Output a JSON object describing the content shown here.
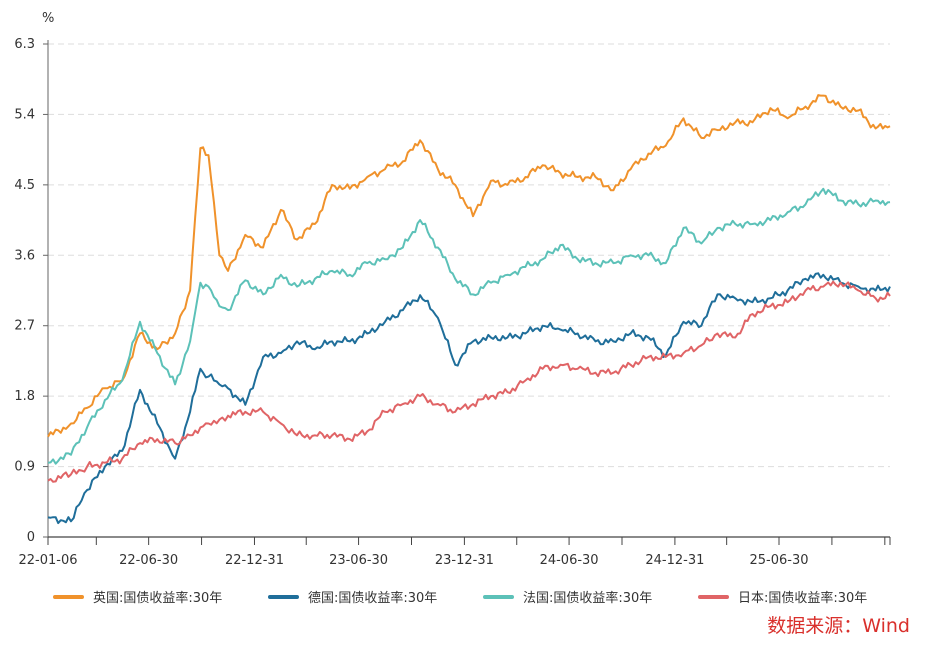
{
  "chart_data": {
    "type": "line",
    "ylabel": "%",
    "ylim": [
      0,
      6.3
    ],
    "yticks": [
      "0",
      "0.9",
      "1.8",
      "2.7",
      "3.6",
      "4.5",
      "5.4",
      "6.3"
    ],
    "xlim": [
      "2022-01-06",
      "2026-01-09"
    ],
    "xticks": [
      {
        "label": "22-01-06",
        "date": "2022-01-06"
      },
      {
        "label": "22-06-30",
        "date": "2022-06-30"
      },
      {
        "label": "22-12-31",
        "date": "2022-12-31"
      },
      {
        "label": "23-06-30",
        "date": "2023-06-30"
      },
      {
        "label": "23-12-31",
        "date": "2023-12-31"
      },
      {
        "label": "24-06-30",
        "date": "2024-06-30"
      },
      {
        "label": "24-12-31",
        "date": "2024-12-31"
      },
      {
        "label": "25-06-30",
        "date": "2025-06-30"
      }
    ],
    "grid": "horizontal dashed",
    "legend": "bottom",
    "x": [
      "2022-01-06",
      "2022-02-15",
      "2022-03-15",
      "2022-04-15",
      "2022-05-15",
      "2022-06-15",
      "2022-07-15",
      "2022-08-15",
      "2022-09-10",
      "2022-09-28",
      "2022-10-12",
      "2022-10-31",
      "2022-11-15",
      "2022-12-15",
      "2023-01-15",
      "2023-02-15",
      "2023-03-15",
      "2023-04-15",
      "2023-05-15",
      "2023-06-15",
      "2023-07-15",
      "2023-08-15",
      "2023-09-15",
      "2023-10-15",
      "2023-11-15",
      "2023-12-15",
      "2024-01-15",
      "2024-02-15",
      "2024-03-15",
      "2024-04-15",
      "2024-05-15",
      "2024-06-15",
      "2024-07-15",
      "2024-08-15",
      "2024-09-15",
      "2024-10-15",
      "2024-11-15",
      "2024-12-15",
      "2025-01-15",
      "2025-02-15",
      "2025-03-15",
      "2025-04-15",
      "2025-05-15",
      "2025-06-15",
      "2025-07-15",
      "2025-08-15",
      "2025-09-15",
      "2025-10-15",
      "2025-11-15",
      "2025-12-15",
      "2026-01-09"
    ],
    "series": [
      {
        "name": "英国:国债收益率:30年",
        "color": "#f0922b",
        "values": [
          1.28,
          1.45,
          1.65,
          1.9,
          2.0,
          2.6,
          2.4,
          2.6,
          3.15,
          4.97,
          4.88,
          3.6,
          3.4,
          3.86,
          3.7,
          4.18,
          3.8,
          4.0,
          4.5,
          4.45,
          4.6,
          4.7,
          4.8,
          5.07,
          4.7,
          4.5,
          4.1,
          4.55,
          4.5,
          4.6,
          4.75,
          4.65,
          4.6,
          4.6,
          4.43,
          4.7,
          4.9,
          5.0,
          5.35,
          5.1,
          5.2,
          5.3,
          5.3,
          5.48,
          5.35,
          5.5,
          5.64,
          5.5,
          5.45,
          5.22,
          5.25
        ]
      },
      {
        "name": "德国:国债收益率:30年",
        "color": "#1f6e9a",
        "values": [
          0.25,
          0.2,
          0.6,
          0.9,
          1.1,
          1.88,
          1.45,
          1.0,
          1.6,
          2.15,
          2.05,
          1.95,
          1.9,
          1.69,
          2.3,
          2.35,
          2.5,
          2.4,
          2.5,
          2.5,
          2.6,
          2.75,
          2.9,
          3.09,
          2.8,
          2.2,
          2.5,
          2.55,
          2.55,
          2.6,
          2.7,
          2.65,
          2.6,
          2.5,
          2.5,
          2.6,
          2.55,
          2.32,
          2.75,
          2.7,
          3.1,
          3.05,
          3.0,
          3.05,
          3.15,
          3.3,
          3.35,
          3.25,
          3.2,
          3.15,
          3.2
        ]
      },
      {
        "name": "法国:国债收益率:30年",
        "color": "#5cc1b8",
        "values": [
          0.95,
          1.05,
          1.4,
          1.75,
          2.0,
          2.75,
          2.35,
          1.95,
          2.5,
          3.25,
          3.2,
          2.95,
          2.9,
          3.28,
          3.1,
          3.35,
          3.2,
          3.3,
          3.4,
          3.35,
          3.5,
          3.55,
          3.7,
          4.05,
          3.7,
          3.3,
          3.1,
          3.25,
          3.35,
          3.45,
          3.55,
          3.73,
          3.55,
          3.5,
          3.5,
          3.6,
          3.6,
          3.5,
          3.95,
          3.75,
          3.95,
          4.0,
          4.0,
          4.05,
          4.15,
          4.25,
          4.45,
          4.3,
          4.25,
          4.3,
          4.28
        ]
      },
      {
        "name": "日本:国债收益率:30年",
        "color": "#e06466",
        "values": [
          0.72,
          0.8,
          0.9,
          0.95,
          1.0,
          1.2,
          1.25,
          1.2,
          1.3,
          1.4,
          1.45,
          1.5,
          1.55,
          1.6,
          1.6,
          1.45,
          1.3,
          1.3,
          1.3,
          1.25,
          1.35,
          1.6,
          1.7,
          1.8,
          1.7,
          1.6,
          1.7,
          1.8,
          1.85,
          2.0,
          2.15,
          2.2,
          2.15,
          2.1,
          2.1,
          2.2,
          2.3,
          2.3,
          2.35,
          2.45,
          2.6,
          2.55,
          2.85,
          2.95,
          3.0,
          3.15,
          3.2,
          3.25,
          3.15,
          3.05,
          3.08
        ]
      }
    ]
  },
  "source_note": "数据来源：Wind"
}
